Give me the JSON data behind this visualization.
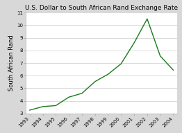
{
  "title": "U.S. Dollar to South African Rand Exchange Rate",
  "ylabel": "South African Rand",
  "years": [
    "1993",
    "1994",
    "1995",
    "1996",
    "1997",
    "1998",
    "1999",
    "2000",
    "2001",
    "2002",
    "2003",
    "2004"
  ],
  "values": [
    3.27,
    3.55,
    3.63,
    4.3,
    4.6,
    5.53,
    6.11,
    6.94,
    8.6,
    10.5,
    7.56,
    6.44
  ],
  "line_color": "#1a7a1a",
  "bg_color": "#d8d8d8",
  "plot_bg_color": "#ffffff",
  "ylim": [
    3,
    11
  ],
  "yticks": [
    3,
    4,
    5,
    6,
    7,
    8,
    9,
    10,
    11
  ],
  "title_fontsize": 6.5,
  "tick_fontsize": 5.0,
  "ylabel_fontsize": 6.0,
  "line_width": 1.0
}
